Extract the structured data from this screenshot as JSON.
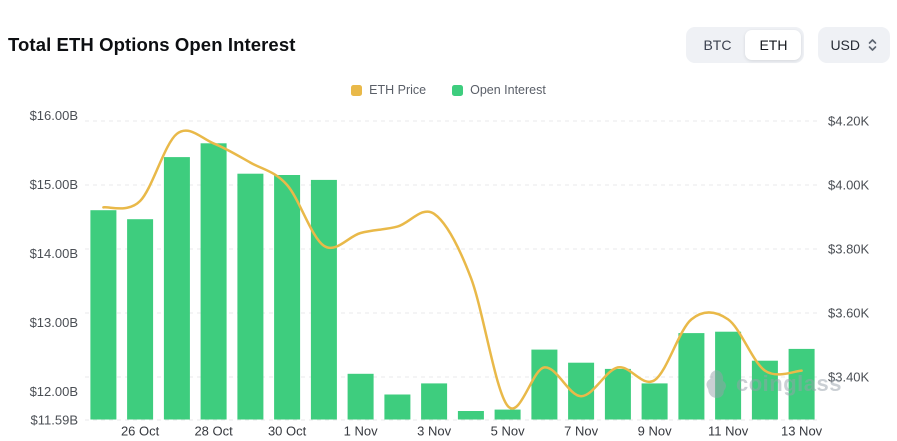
{
  "header": {
    "title": "Total ETH Options Open Interest",
    "coin_toggle": {
      "options": [
        {
          "label": "BTC",
          "selected": false
        },
        {
          "label": "ETH",
          "selected": true
        }
      ]
    },
    "unit_select": {
      "value": "USD"
    }
  },
  "legend": {
    "items": [
      {
        "label": "ETH Price",
        "color": "#E9B949"
      },
      {
        "label": "Open Interest",
        "color": "#3ECD7E"
      }
    ]
  },
  "watermark": {
    "text": "coinglass"
  },
  "chart_data": {
    "type": "bar+line combo",
    "categories": [
      "25 Oct",
      "26 Oct",
      "27 Oct",
      "28 Oct",
      "29 Oct",
      "30 Oct",
      "31 Oct",
      "1 Nov",
      "2 Nov",
      "3 Nov",
      "4 Nov",
      "5 Nov",
      "6 Nov",
      "7 Nov",
      "8 Nov",
      "9 Nov",
      "10 Nov",
      "11 Nov",
      "12 Nov",
      "13 Nov"
    ],
    "x_tick_labels": [
      "26 Oct",
      "28 Oct",
      "30 Oct",
      "1 Nov",
      "3 Nov",
      "5 Nov",
      "7 Nov",
      "9 Nov",
      "11 Nov",
      "13 Nov"
    ],
    "series": [
      {
        "name": "Open Interest",
        "type": "bar",
        "axis": "left",
        "unit": "USD billions",
        "color": "#3ECD7E",
        "values": [
          14.63,
          14.5,
          15.4,
          15.6,
          15.16,
          15.14,
          15.07,
          12.26,
          11.96,
          12.12,
          11.72,
          11.74,
          12.61,
          12.42,
          12.33,
          12.12,
          12.85,
          12.87,
          12.45,
          12.62
        ]
      },
      {
        "name": "ETH Price",
        "type": "line",
        "axis": "right",
        "unit": "USD thousands",
        "color": "#E9B949",
        "values": [
          3.93,
          3.95,
          4.16,
          4.13,
          4.07,
          4.0,
          3.81,
          3.85,
          3.87,
          3.91,
          3.71,
          3.31,
          3.43,
          3.34,
          3.43,
          3.39,
          3.58,
          3.58,
          3.42,
          3.42
        ]
      }
    ],
    "left_axis": {
      "tick_labels": [
        "$16.00B",
        "$15.00B",
        "$14.00B",
        "$13.00B",
        "$12.00B",
        "$11.59B"
      ],
      "tick_values": [
        16,
        15,
        14,
        13,
        12,
        11.59
      ],
      "min": 11.59,
      "max": 16.0
    },
    "right_axis": {
      "tick_labels": [
        "$4.20K",
        "$4.00K",
        "$3.80K",
        "$3.60K",
        "$3.40K"
      ],
      "tick_values": [
        4.2,
        4.0,
        3.8,
        3.6,
        3.4
      ],
      "min": 3.27,
      "max": 4.23
    },
    "grid": {
      "horizontal_dashed": true,
      "vertical": false
    },
    "legend_position": "top-center",
    "line_smooth": true
  }
}
